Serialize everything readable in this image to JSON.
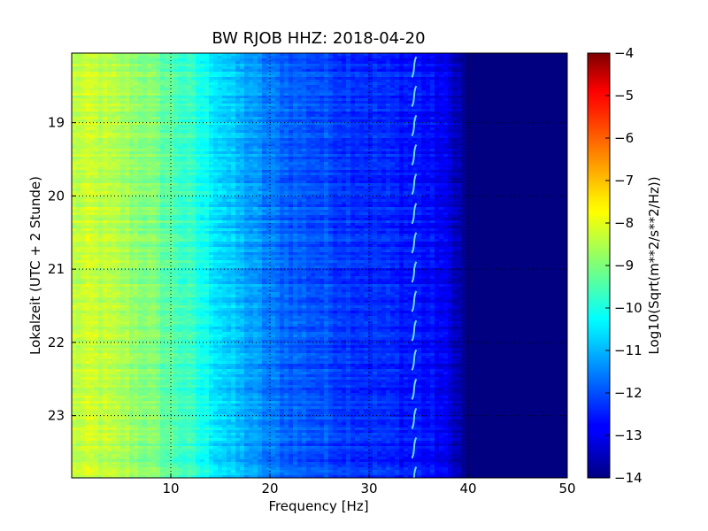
{
  "chart_data": {
    "type": "heatmap",
    "title": "BW RJOB HHZ: 2018-04-20",
    "xlabel": "Frequency [Hz]",
    "ylabel": "Lokalzeit (UTC + 2 Stunde)",
    "xlim": [
      0,
      50
    ],
    "ylim": [
      18.05,
      23.85
    ],
    "x_ticks": [
      "10",
      "20",
      "30",
      "40",
      "50"
    ],
    "y_ticks": [
      "19",
      "20",
      "21",
      "22",
      "23"
    ],
    "grid": true,
    "colorbar": {
      "label": "Log10(Sqrt(m**2/s**2/Hz))",
      "range": [
        -14,
        -4
      ],
      "ticks": [
        "−4",
        "−5",
        "−6",
        "−7",
        "−8",
        "−9",
        "−10",
        "−11",
        "−12",
        "−13",
        "−14"
      ],
      "colormap": "jet"
    },
    "spectral_profile": [
      {
        "freq": 0,
        "value": -8.4
      },
      {
        "freq": 2,
        "value": -8.3
      },
      {
        "freq": 5,
        "value": -8.6
      },
      {
        "freq": 8,
        "value": -9.0
      },
      {
        "freq": 10,
        "value": -9.4
      },
      {
        "freq": 12,
        "value": -9.8
      },
      {
        "freq": 14,
        "value": -10.3
      },
      {
        "freq": 16,
        "value": -10.8
      },
      {
        "freq": 18,
        "value": -11.2
      },
      {
        "freq": 20,
        "value": -11.6
      },
      {
        "freq": 22,
        "value": -11.8
      },
      {
        "freq": 25,
        "value": -12.0
      },
      {
        "freq": 28,
        "value": -12.2
      },
      {
        "freq": 30,
        "value": -12.3
      },
      {
        "freq": 33,
        "value": -12.5
      },
      {
        "freq": 35,
        "value": -12.6
      },
      {
        "freq": 37,
        "value": -12.8
      },
      {
        "freq": 38.5,
        "value": -13.2
      },
      {
        "freq": 39.5,
        "value": -13.8
      },
      {
        "freq": 40,
        "value": -14.0
      },
      {
        "freq": 50,
        "value": -14.0
      }
    ],
    "tonal_line_freq": 34.5
  }
}
